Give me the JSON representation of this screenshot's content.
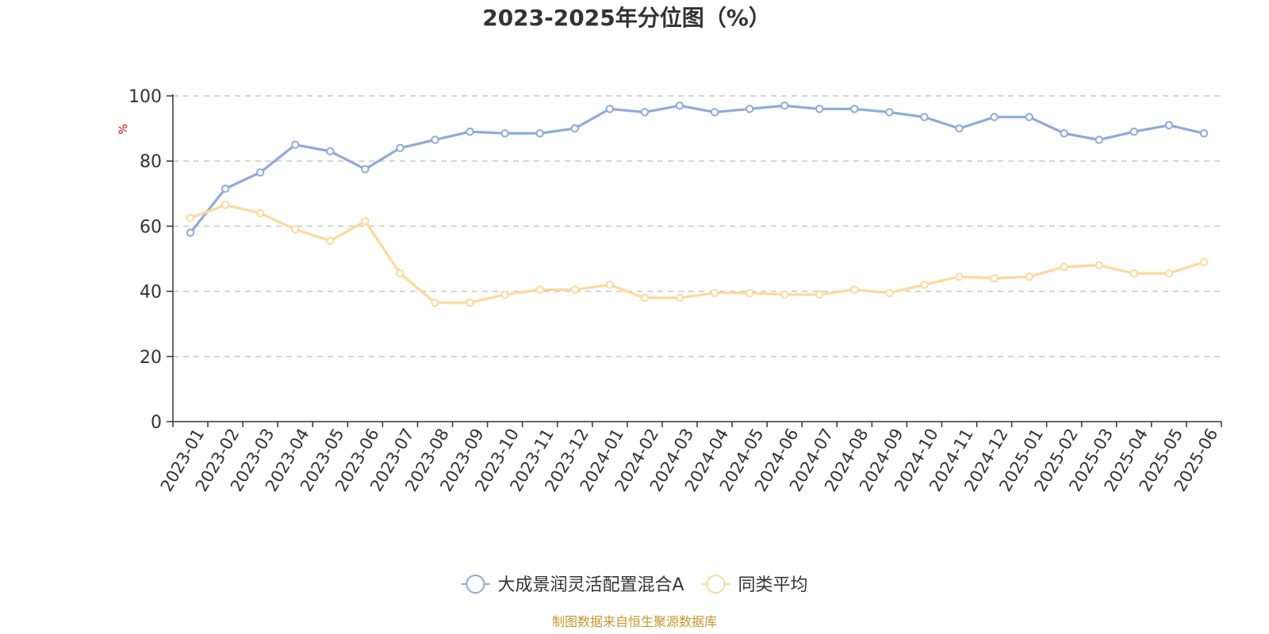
{
  "chart_data": {
    "type": "line",
    "title": "2023-2025年分位图（%）",
    "ylabel": "%",
    "xlabel": "",
    "ylim": [
      0,
      100
    ],
    "yticks": [
      0,
      20,
      40,
      60,
      80,
      100
    ],
    "grid": true,
    "legend_position": "bottom",
    "categories": [
      "2023-01",
      "2023-02",
      "2023-03",
      "2023-04",
      "2023-05",
      "2023-06",
      "2023-07",
      "2023-08",
      "2023-09",
      "2023-10",
      "2023-11",
      "2023-12",
      "2024-01",
      "2024-02",
      "2024-03",
      "2024-04",
      "2024-05",
      "2024-06",
      "2024-07",
      "2024-08",
      "2024-09",
      "2024-10",
      "2024-11",
      "2024-12",
      "2025-01",
      "2025-02",
      "2025-03",
      "2025-04",
      "2025-05",
      "2025-06"
    ],
    "series": [
      {
        "name": "大成景润灵活配置混合A",
        "color": "#8eaadb",
        "values": [
          58,
          71.5,
          76.5,
          85,
          83,
          77.5,
          84,
          86.5,
          89,
          88.5,
          88.5,
          90,
          96,
          95,
          97,
          95,
          96,
          97,
          96,
          96,
          95,
          93.5,
          90,
          93.5,
          93.5,
          88.5,
          86.5,
          89,
          91,
          88.5
        ]
      },
      {
        "name": "同类平均",
        "color": "#fdd99b",
        "values": [
          62.5,
          66.5,
          64,
          59,
          55.5,
          61.5,
          45.5,
          36.5,
          36.5,
          39,
          40.5,
          40.5,
          42,
          38,
          38,
          39.5,
          39.5,
          39,
          39,
          40.5,
          39.5,
          42,
          44.5,
          44,
          44.5,
          47.5,
          48,
          45.5,
          45.5,
          49
        ]
      }
    ]
  },
  "unit_color": "#e60000",
  "source_text": "制图数据来自恒生聚源数据库",
  "source_color": "#c8962d"
}
